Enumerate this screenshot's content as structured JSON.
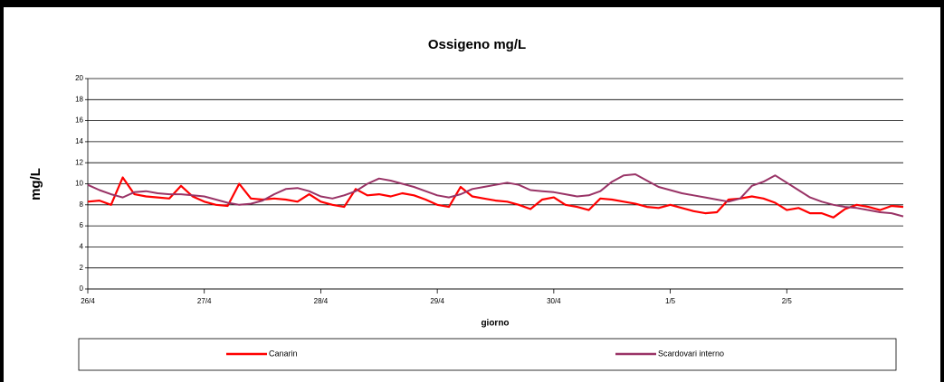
{
  "chart_data": {
    "type": "line",
    "title": "Ossigeno mg/L",
    "x_label": "giorno",
    "y_label": "mg/L",
    "x": [
      0,
      0.1,
      0.2,
      0.3,
      0.4,
      0.5,
      0.6,
      0.7,
      0.8,
      0.9,
      1,
      1.1,
      1.2,
      1.3,
      1.4,
      1.5,
      1.6,
      1.7,
      1.8,
      1.9,
      2,
      2.1,
      2.2,
      2.3,
      2.4,
      2.5,
      2.6,
      2.7,
      2.8,
      2.9,
      3,
      3.1,
      3.2,
      3.3,
      3.4,
      3.5,
      3.6,
      3.7,
      3.8,
      3.9,
      4,
      4.1,
      4.2,
      4.3,
      4.4,
      4.5,
      4.6,
      4.7,
      4.8,
      4.9,
      5,
      5.1,
      5.2,
      5.3,
      5.4,
      5.5,
      5.6,
      5.7,
      5.8,
      5.9,
      6,
      6.1,
      6.2,
      6.3,
      6.4,
      6.5,
      6.6,
      6.7,
      6.8,
      6.9,
      7
    ],
    "series": [
      {
        "name": "Canarin",
        "color": "#ff0000",
        "values": [
          8.3,
          8.4,
          8.0,
          10.6,
          9.0,
          8.8,
          8.7,
          8.6,
          9.8,
          8.8,
          8.3,
          8.0,
          7.9,
          10.0,
          8.6,
          8.5,
          8.6,
          8.5,
          8.3,
          9.0,
          8.3,
          8.0,
          7.8,
          9.5,
          8.9,
          9.0,
          8.8,
          9.1,
          8.9,
          8.5,
          8.0,
          7.8,
          9.7,
          8.8,
          8.6,
          8.4,
          8.3,
          8.0,
          7.6,
          8.5,
          8.7,
          8.0,
          7.8,
          7.5,
          8.6,
          8.5,
          8.3,
          8.1,
          7.8,
          7.7,
          8.0,
          7.7,
          7.4,
          7.2,
          7.3,
          8.5,
          8.6,
          8.8,
          8.6,
          8.2,
          7.5,
          7.7,
          7.2,
          7.2,
          6.8,
          7.6,
          8.0,
          7.8,
          7.5,
          7.9,
          7.8
        ]
      },
      {
        "name": "Scardovari interno",
        "color": "#993366",
        "values": [
          9.9,
          9.4,
          9.0,
          8.7,
          9.2,
          9.3,
          9.1,
          9.0,
          9.0,
          8.9,
          8.8,
          8.5,
          8.2,
          8.0,
          8.1,
          8.4,
          9.0,
          9.5,
          9.6,
          9.3,
          8.8,
          8.6,
          8.9,
          9.3,
          10.0,
          10.5,
          10.3,
          10.0,
          9.7,
          9.3,
          8.9,
          8.7,
          9.0,
          9.5,
          9.7,
          9.9,
          10.1,
          9.9,
          9.4,
          9.3,
          9.2,
          9.0,
          8.8,
          8.9,
          9.3,
          10.2,
          10.8,
          10.9,
          10.3,
          9.7,
          9.4,
          9.1,
          8.9,
          8.7,
          8.5,
          8.3,
          8.6,
          9.8,
          10.2,
          10.8,
          10.1,
          9.4,
          8.7,
          8.3,
          8.0,
          7.8,
          7.7,
          7.5,
          7.3,
          7.2,
          6.9
        ]
      }
    ],
    "xlim": [
      0,
      7
    ],
    "xticks": [
      {
        "value": 0,
        "label": "26/4"
      },
      {
        "value": 1,
        "label": "27/4"
      },
      {
        "value": 2,
        "label": "28/4"
      },
      {
        "value": 3,
        "label": "29/4"
      },
      {
        "value": 4,
        "label": "30/4"
      },
      {
        "value": 5,
        "label": "1/5"
      },
      {
        "value": 6,
        "label": "2/5"
      }
    ],
    "ylim": [
      0,
      20
    ],
    "yticks": [
      0,
      2,
      4,
      6,
      8,
      10,
      12,
      14,
      16,
      18,
      20
    ],
    "grid": true,
    "legend": "bottom"
  }
}
